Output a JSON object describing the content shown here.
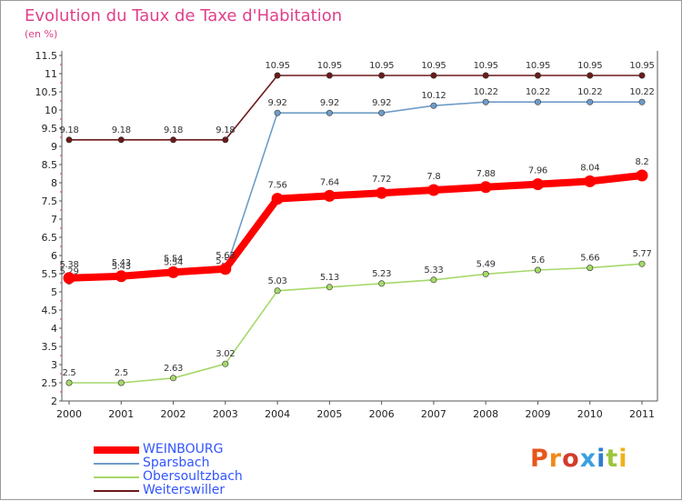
{
  "title": "Evolution du Taux de Taxe d'Habitation",
  "subtitle": "(en %)",
  "logo": {
    "text": "Proxiti",
    "letter_colors": [
      "#e8561c",
      "#f08a1a",
      "#d23c2a",
      "#3aa0e0",
      "#2c7fd0",
      "#9bc53d",
      "#f0b21a"
    ]
  },
  "chart_data": {
    "type": "line",
    "title": "Evolution du Taux de Taxe d'Habitation",
    "ylabel": "(en %)",
    "xlabel": "",
    "x": [
      "2000",
      "2001",
      "2002",
      "2003",
      "2004",
      "2005",
      "2006",
      "2007",
      "2008",
      "2009",
      "2010",
      "2011"
    ],
    "ylim": [
      2,
      11.5
    ],
    "yticks": [
      2,
      2.5,
      3,
      3.5,
      4,
      4.5,
      5,
      5.5,
      6,
      6.5,
      7,
      7.5,
      8,
      8.5,
      9,
      9.5,
      10,
      10.5,
      11,
      11.5
    ],
    "grid": false,
    "legend_position": "bottom-left",
    "series": [
      {
        "name": "Weiterswiller",
        "color": "#6b1a1a",
        "values": [
          9.18,
          9.18,
          9.18,
          9.18,
          10.95,
          10.95,
          10.95,
          10.95,
          10.95,
          10.95,
          10.95,
          10.95
        ],
        "labels": [
          "9.18",
          "9.18",
          "9.18",
          "9.18",
          "10.95",
          "10.95",
          "10.95",
          "10.95",
          "10.95",
          "10.95",
          "10.95",
          "10.95"
        ]
      },
      {
        "name": "Sparsbach",
        "color": "#6f9cc8",
        "values": [
          5.29,
          5.43,
          5.54,
          5.58,
          9.92,
          9.92,
          9.92,
          10.12,
          10.22,
          10.22,
          10.22,
          10.22
        ],
        "labels": [
          "5.29",
          "5.43",
          "5.54",
          "5.58",
          "9.92",
          "9.92",
          "9.92",
          "10.12",
          "10.22",
          "10.22",
          "10.22",
          "10.22"
        ]
      },
      {
        "name": "Obersoultzbach",
        "color": "#a6d86a",
        "values": [
          2.5,
          2.5,
          2.63,
          3.02,
          5.03,
          5.13,
          5.23,
          5.33,
          5.49,
          5.6,
          5.66,
          5.77
        ],
        "labels": [
          "2.5",
          "2.5",
          "2.63",
          "3.02",
          "5.03",
          "5.13",
          "5.23",
          "5.33",
          "5.49",
          "5.6",
          "5.66",
          "5.77"
        ]
      },
      {
        "name": "WEINBOURG",
        "color": "#ff0000",
        "values": [
          5.38,
          5.43,
          5.54,
          5.63,
          7.56,
          7.64,
          7.72,
          7.8,
          7.88,
          7.96,
          8.04,
          8.2
        ],
        "labels": [
          "5.38",
          "5.43",
          "5.54",
          "5.63",
          "7.56",
          "7.64",
          "7.72",
          "7.8",
          "7.88",
          "7.96",
          "8.04",
          "8.2"
        ]
      }
    ],
    "legend": [
      "WEINBOURG",
      "Sparsbach",
      "Obersoultzbach",
      "Weiterswiller"
    ]
  }
}
